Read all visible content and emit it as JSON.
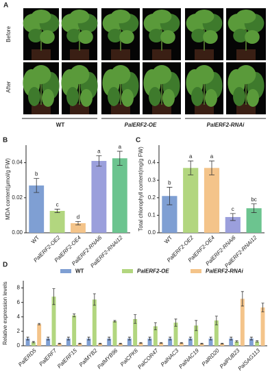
{
  "panel_a": {
    "label": "A",
    "row_labels": [
      "Before",
      "After"
    ],
    "groups": [
      "WT",
      "PalERF2-OE",
      "PalERF2-RNAi"
    ]
  },
  "chart_data": [
    {
      "type": "bar",
      "label": "B",
      "y_label": "MDA content(μmol/g FW)",
      "categories": [
        "WT",
        "PalERF2-OE2",
        "PalERF2-OE4",
        "PalERF2-RNAi6",
        "PalERF2-RNAi12"
      ],
      "values": [
        0.027,
        0.0125,
        0.0055,
        0.041,
        0.0425
      ],
      "errors": [
        0.004,
        0.001,
        0.001,
        0.003,
        0.004
      ],
      "letters": [
        "b",
        "c",
        "d",
        "a",
        "a"
      ],
      "colors": [
        "#7f9fd3",
        "#b2d67f",
        "#f4c48a",
        "#9b9fdc",
        "#6cc48f"
      ],
      "ylim": [
        0,
        0.05
      ],
      "yticks": [
        {
          "value": 0,
          "label": "0.00"
        },
        {
          "value": 0.02,
          "label": "0.02"
        },
        {
          "value": 0.04,
          "label": "0.04"
        }
      ]
    },
    {
      "type": "bar",
      "label": "C",
      "y_label": "Total chlorophyll content(mg/g FW)",
      "categories": [
        "WT",
        "PalERF2-OE2",
        "PalERF2-OE4",
        "PalERF2-RNAi6",
        "PalERF2-RNAi12"
      ],
      "values": [
        0.21,
        0.37,
        0.37,
        0.09,
        0.14
      ],
      "errors": [
        0.05,
        0.04,
        0.04,
        0.02,
        0.025
      ],
      "letters": [
        "b",
        "a",
        "a",
        "c",
        "bc"
      ],
      "colors": [
        "#7f9fd3",
        "#b2d67f",
        "#f4c48a",
        "#9b9fdc",
        "#6cc48f"
      ],
      "ylim": [
        0,
        0.5
      ],
      "yticks": [
        {
          "value": 0,
          "label": "0.0"
        },
        0.1,
        0.2,
        0.3,
        0.4
      ]
    },
    {
      "type": "grouped_bar",
      "label": "D",
      "y_label": "Relative expression levels",
      "categories": [
        "PalERD5",
        "PalERF7",
        "PalERF15",
        "PalMYB2",
        "PalMYB96",
        "PalCPK6",
        "PalCOR47",
        "PalNAC3",
        "PalNAC19",
        "PalRD20",
        "PalPUB23",
        "PalSAG113"
      ],
      "series": [
        {
          "name": "WT",
          "color": "#7f9fd3",
          "values": [
            1,
            1,
            1,
            1,
            1,
            1,
            1,
            1,
            1,
            1,
            1,
            1
          ],
          "errors": [
            0.2,
            0.2,
            0.2,
            0.2,
            0.2,
            0.2,
            0.2,
            0.2,
            0.2,
            0.2,
            0.2,
            0.2
          ]
        },
        {
          "name": "PalERF2-OE",
          "color": "#b2d67f",
          "values": [
            0.5,
            6.8,
            4.2,
            6.4,
            3.4,
            3.7,
            2.7,
            3.2,
            2.8,
            3.5,
            0.6,
            0.6
          ],
          "errors": [
            0.1,
            1.1,
            0.2,
            0.8,
            0.1,
            0.6,
            0.5,
            0.5,
            0.7,
            0.6,
            0.1,
            0.1
          ]
        },
        {
          "name": "PalERF2-RNAi",
          "color": "#f4c48a",
          "values": [
            3.0,
            0.3,
            0.3,
            0.3,
            0.3,
            0.4,
            0.4,
            0.4,
            0.3,
            0.3,
            6.5,
            5.3
          ],
          "errors": [
            0.1,
            0.05,
            0.05,
            0.05,
            0.05,
            0.05,
            0.05,
            0.05,
            0.05,
            0.05,
            1.0,
            0.6
          ]
        }
      ],
      "ylim": [
        0,
        9
      ],
      "yticks": [
        0,
        2,
        4,
        6,
        8
      ]
    }
  ]
}
